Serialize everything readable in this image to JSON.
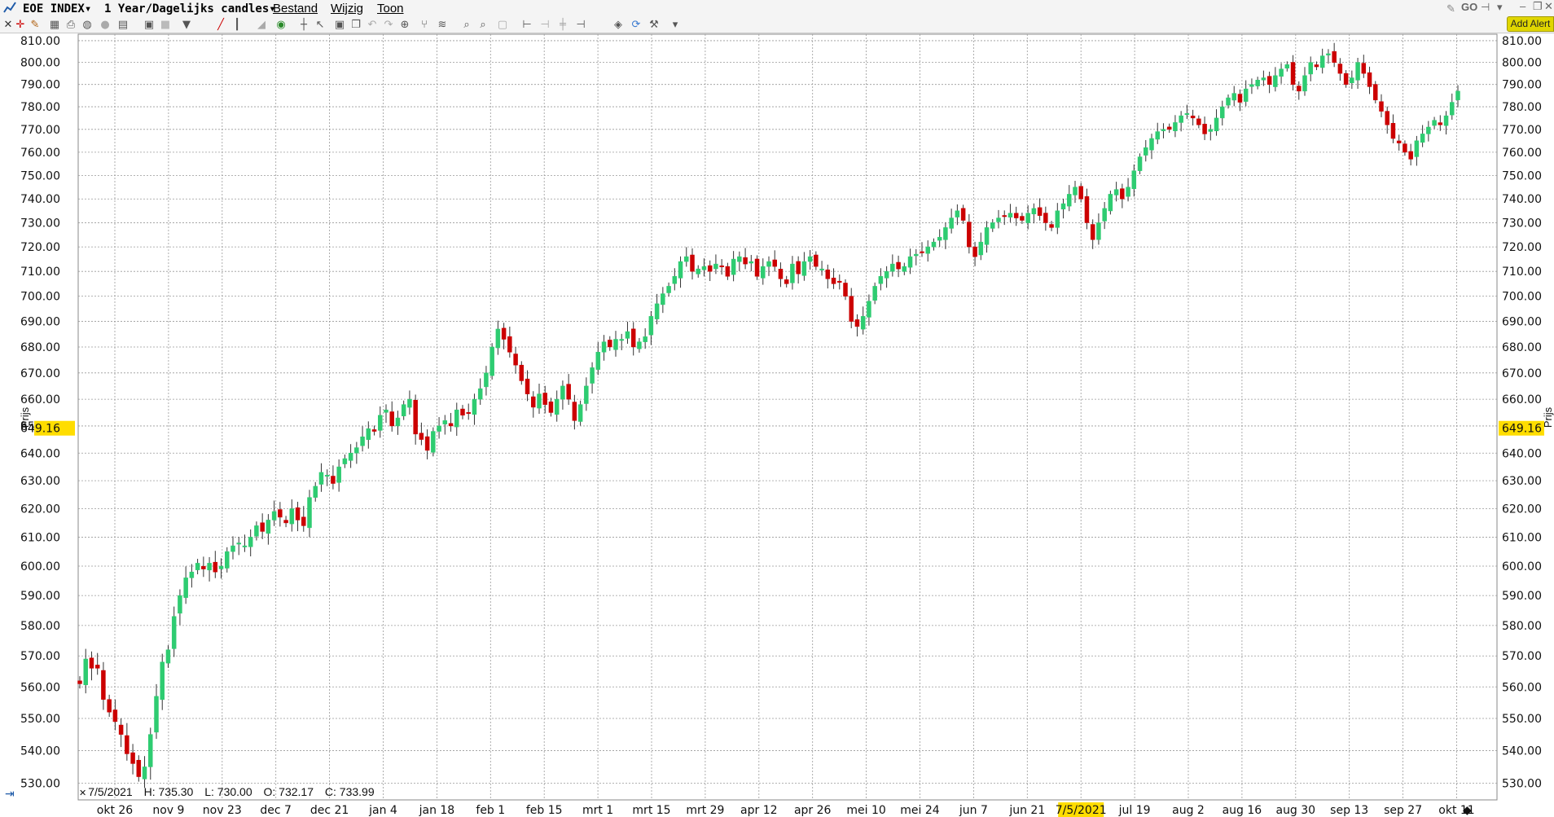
{
  "title_bar": {
    "instrument": "EOE INDEX",
    "timeframe": "1 Year/Dagelijks candles",
    "menu": [
      "Bestand",
      "Wijzig",
      "Toon"
    ]
  },
  "toolbar": {
    "add_alert_label": "Add Alert",
    "icons": [
      "close-icon",
      "crosshair-icon",
      "pencil-icon",
      "grid-icon",
      "print-icon",
      "zoom-icon",
      "circle-icon",
      "gallery-icon",
      "layout-icon",
      "square-icon",
      "triangle-down-icon",
      "line-draw-icon",
      "bar-icon",
      "area-icon",
      "refresh-icon",
      "cross-icon",
      "cursor-icon",
      "box-icon",
      "copy-icon",
      "undo-icon",
      "redo-icon",
      "zoom-in-icon",
      "fork-icon",
      "magnify-icon",
      "magnify-minus-icon",
      "square-icon",
      "align-left-icon",
      "align-center-icon",
      "align-mid-icon",
      "align-right-icon",
      "paint-icon",
      "cycle-icon",
      "wrench-icon",
      "dropdown-icon"
    ]
  },
  "info_line": {
    "date": "7/5/2021",
    "high": "H: 735.30",
    "low": "L: 730.00",
    "open": "O: 732.17",
    "close": "C: 733.99"
  },
  "current_price": "649.16",
  "axis_label": "Prijs",
  "highlight_date": "7/5/2021",
  "colors": {
    "up": "#2ecc71",
    "down": "#cc0000",
    "highlight": "#ffdd00",
    "grid": "#999999"
  },
  "chart_data": {
    "type": "candlestick",
    "ylim": [
      525,
      813
    ],
    "y_ticks": [
      "810.00",
      "800.00",
      "790.00",
      "780.00",
      "770.00",
      "760.00",
      "750.00",
      "740.00",
      "730.00",
      "720.00",
      "710.00",
      "700.00",
      "690.00",
      "680.00",
      "670.00",
      "660.00",
      "650.00",
      "640.00",
      "630.00",
      "620.00",
      "610.00",
      "600.00",
      "590.00",
      "580.00",
      "570.00",
      "560.00",
      "550.00",
      "540.00",
      "530.00"
    ],
    "x_labels": [
      "okt 26",
      "nov 9",
      "nov 23",
      "dec 7",
      "dec 21",
      "jan 4",
      "jan 18",
      "feb 1",
      "feb 15",
      "mrt 1",
      "mrt 15",
      "mrt 29",
      "apr 12",
      "apr 26",
      "mei 10",
      "mei 24",
      "jun 7",
      "jun 21",
      "7/5/2021",
      "jul 19",
      "aug 2",
      "aug 16",
      "aug 30",
      "sep 13",
      "sep 27",
      "okt 11"
    ],
    "closes": [
      561,
      569,
      566,
      566,
      556,
      552,
      549,
      545,
      539,
      536,
      532,
      535,
      545,
      557,
      568,
      572,
      583,
      590,
      596,
      598,
      601,
      599,
      601,
      598,
      600,
      605,
      607,
      608,
      607,
      610,
      614,
      612,
      616,
      619,
      617,
      615,
      620,
      616,
      614,
      624,
      628,
      633,
      632,
      629,
      635,
      638,
      640,
      642,
      646,
      649,
      648,
      654,
      656,
      650,
      653,
      658,
      660,
      647,
      645,
      641,
      648,
      650,
      652,
      650,
      656,
      654,
      655,
      660,
      664,
      670,
      680,
      687,
      683,
      678,
      673,
      667,
      662,
      657,
      662,
      658,
      655,
      660,
      665,
      660,
      652,
      658,
      665,
      672,
      678,
      682,
      680,
      683,
      683,
      686,
      680,
      682,
      684,
      692,
      697,
      701,
      704,
      708,
      714,
      716,
      710,
      711,
      712,
      710,
      713,
      712,
      708,
      715,
      716,
      713,
      714,
      708,
      712,
      714,
      712,
      707,
      705,
      713,
      709,
      714,
      716,
      712,
      711,
      707,
      705,
      706,
      700,
      690,
      688,
      692,
      698,
      704,
      708,
      710,
      713,
      711,
      712,
      716,
      717,
      718,
      720,
      722,
      724,
      728,
      732,
      735,
      731,
      720,
      716,
      722,
      728,
      730,
      732,
      733,
      734,
      732,
      731,
      734,
      736,
      733,
      730,
      728,
      735,
      738,
      742,
      745,
      740,
      730,
      723,
      730,
      736,
      742,
      744,
      740,
      745,
      752,
      758,
      762,
      766,
      769,
      770,
      770,
      773,
      776,
      777,
      775,
      772,
      768,
      770,
      775,
      780,
      784,
      786,
      782,
      788,
      790,
      792,
      793,
      790,
      794,
      797,
      799,
      790,
      787,
      794,
      800,
      798,
      803,
      804,
      800,
      795,
      790,
      793,
      800,
      795,
      789,
      783,
      778,
      772,
      766,
      764,
      760,
      757,
      765,
      768,
      771,
      774,
      772,
      776,
      782,
      787
    ]
  }
}
